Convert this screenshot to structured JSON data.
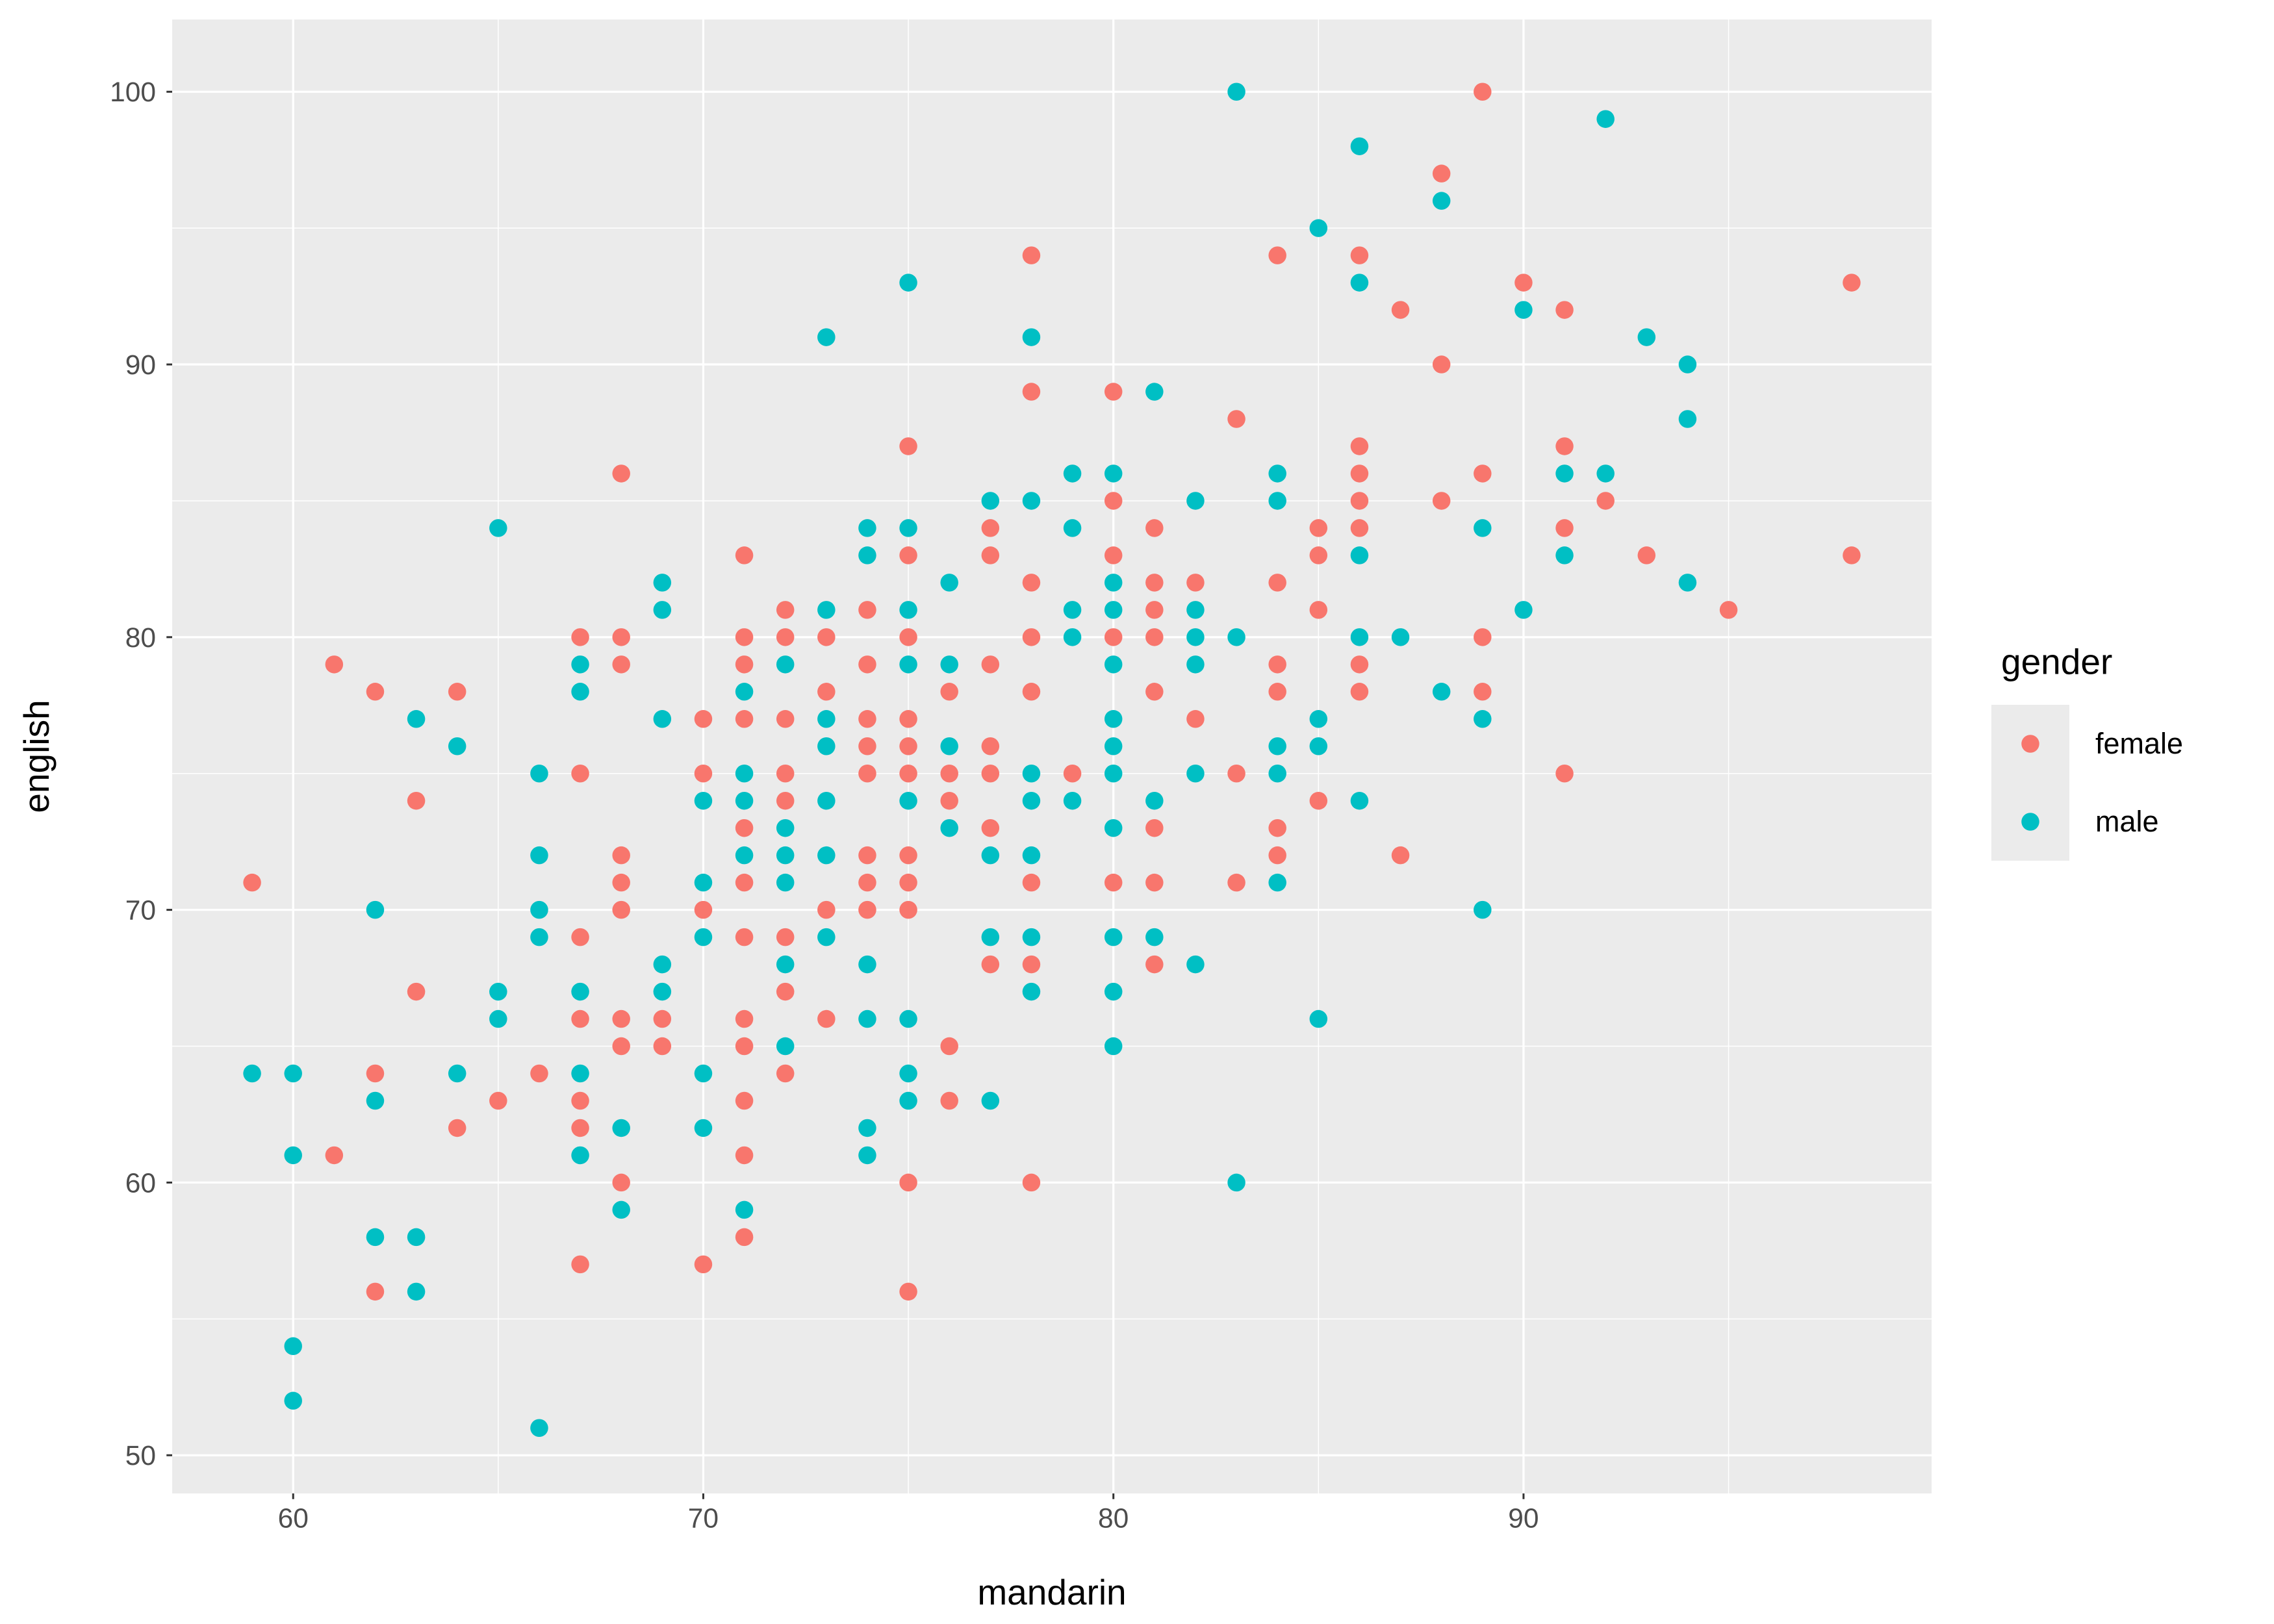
{
  "chart_data": {
    "type": "scatter",
    "title": "",
    "xlabel": "mandarin",
    "ylabel": "english",
    "x_ticks": [
      60,
      70,
      80,
      90
    ],
    "y_ticks": [
      50,
      60,
      70,
      80,
      90,
      100
    ],
    "x_minor_gridlines": [
      65,
      75,
      85,
      95
    ],
    "y_minor_gridlines": [
      55,
      65,
      75,
      85,
      95
    ],
    "xlim": [
      57.05,
      99.95
    ],
    "ylim": [
      48.6,
      102.65
    ],
    "grid": "white major and minor gridlines on gray panel",
    "point_radius_px": 5.5,
    "legend": {
      "title": "gender",
      "position": "right",
      "entries": [
        {
          "label": "female",
          "color": "#F8766D"
        },
        {
          "label": "male",
          "color": "#00BFC4"
        }
      ]
    },
    "series": [
      {
        "name": "female",
        "color": "#F8766D",
        "points": [
          [
            68,
            86
          ],
          [
            78,
            94
          ],
          [
            84,
            94
          ],
          [
            86,
            94
          ],
          [
            78,
            89
          ],
          [
            80,
            89
          ],
          [
            83,
            88
          ],
          [
            75,
            87
          ],
          [
            86,
            87
          ],
          [
            86,
            86
          ],
          [
            80,
            85
          ],
          [
            86,
            85
          ],
          [
            89,
            100
          ],
          [
            88,
            97
          ],
          [
            90,
            93
          ],
          [
            98,
            93
          ],
          [
            87,
            92
          ],
          [
            91,
            92
          ],
          [
            88,
            90
          ],
          [
            91,
            87
          ],
          [
            89,
            86
          ],
          [
            88,
            85
          ],
          [
            92,
            85
          ],
          [
            91,
            84
          ],
          [
            93,
            83
          ],
          [
            98,
            83
          ],
          [
            95,
            81
          ],
          [
            89,
            80
          ],
          [
            89,
            78
          ],
          [
            91,
            75
          ],
          [
            87,
            72
          ],
          [
            71,
            83
          ],
          [
            67,
            80
          ],
          [
            68,
            80
          ],
          [
            71,
            80
          ],
          [
            61,
            79
          ],
          [
            68,
            79
          ],
          [
            71,
            79
          ],
          [
            62,
            78
          ],
          [
            64,
            78
          ],
          [
            70,
            77
          ],
          [
            71,
            77
          ],
          [
            67,
            75
          ],
          [
            70,
            75
          ],
          [
            63,
            74
          ],
          [
            71,
            73
          ],
          [
            68,
            72
          ],
          [
            59,
            71
          ],
          [
            68,
            71
          ],
          [
            71,
            71
          ],
          [
            68,
            70
          ],
          [
            70,
            70
          ],
          [
            67,
            69
          ],
          [
            71,
            69
          ],
          [
            63,
            67
          ],
          [
            77,
            84
          ],
          [
            81,
            84
          ],
          [
            85,
            84
          ],
          [
            86,
            84
          ],
          [
            75,
            83
          ],
          [
            77,
            83
          ],
          [
            80,
            83
          ],
          [
            85,
            83
          ],
          [
            78,
            82
          ],
          [
            81,
            82
          ],
          [
            82,
            82
          ],
          [
            84,
            82
          ],
          [
            72,
            81
          ],
          [
            74,
            81
          ],
          [
            81,
            81
          ],
          [
            85,
            81
          ],
          [
            72,
            80
          ],
          [
            73,
            80
          ],
          [
            75,
            80
          ],
          [
            78,
            80
          ],
          [
            80,
            80
          ],
          [
            81,
            80
          ],
          [
            74,
            79
          ],
          [
            77,
            79
          ],
          [
            84,
            79
          ],
          [
            86,
            79
          ],
          [
            73,
            78
          ],
          [
            76,
            78
          ],
          [
            78,
            78
          ],
          [
            81,
            78
          ],
          [
            84,
            78
          ],
          [
            86,
            78
          ],
          [
            72,
            77
          ],
          [
            74,
            77
          ],
          [
            75,
            77
          ],
          [
            82,
            77
          ],
          [
            74,
            76
          ],
          [
            75,
            76
          ],
          [
            77,
            76
          ],
          [
            72,
            75
          ],
          [
            74,
            75
          ],
          [
            75,
            75
          ],
          [
            76,
            75
          ],
          [
            77,
            75
          ],
          [
            79,
            75
          ],
          [
            83,
            75
          ],
          [
            72,
            74
          ],
          [
            76,
            74
          ],
          [
            85,
            74
          ],
          [
            77,
            73
          ],
          [
            81,
            73
          ],
          [
            84,
            73
          ],
          [
            74,
            72
          ],
          [
            75,
            72
          ],
          [
            84,
            72
          ],
          [
            74,
            71
          ],
          [
            75,
            71
          ],
          [
            78,
            71
          ],
          [
            80,
            71
          ],
          [
            81,
            71
          ],
          [
            83,
            71
          ],
          [
            73,
            70
          ],
          [
            74,
            70
          ],
          [
            75,
            70
          ],
          [
            72,
            69
          ],
          [
            77,
            68
          ],
          [
            78,
            68
          ],
          [
            81,
            68
          ],
          [
            72,
            67
          ],
          [
            67,
            66
          ],
          [
            68,
            66
          ],
          [
            69,
            66
          ],
          [
            71,
            66
          ],
          [
            68,
            65
          ],
          [
            69,
            65
          ],
          [
            71,
            65
          ],
          [
            62,
            64
          ],
          [
            66,
            64
          ],
          [
            65,
            63
          ],
          [
            67,
            63
          ],
          [
            71,
            63
          ],
          [
            64,
            62
          ],
          [
            67,
            62
          ],
          [
            61,
            61
          ],
          [
            71,
            61
          ],
          [
            68,
            60
          ],
          [
            71,
            58
          ],
          [
            67,
            57
          ],
          [
            70,
            57
          ],
          [
            62,
            56
          ],
          [
            73,
            66
          ],
          [
            76,
            65
          ],
          [
            72,
            64
          ],
          [
            76,
            63
          ],
          [
            75,
            60
          ],
          [
            78,
            60
          ],
          [
            75,
            56
          ]
        ]
      },
      {
        "name": "male",
        "color": "#00BFC4",
        "points": [
          [
            83,
            100
          ],
          [
            86,
            98
          ],
          [
            85,
            95
          ],
          [
            75,
            93
          ],
          [
            86,
            93
          ],
          [
            73,
            91
          ],
          [
            78,
            91
          ],
          [
            81,
            89
          ],
          [
            79,
            86
          ],
          [
            80,
            86
          ],
          [
            84,
            86
          ],
          [
            77,
            85
          ],
          [
            78,
            85
          ],
          [
            82,
            85
          ],
          [
            84,
            85
          ],
          [
            92,
            99
          ],
          [
            88,
            96
          ],
          [
            90,
            92
          ],
          [
            93,
            91
          ],
          [
            94,
            90
          ],
          [
            94,
            88
          ],
          [
            91,
            86
          ],
          [
            92,
            86
          ],
          [
            89,
            84
          ],
          [
            91,
            83
          ],
          [
            94,
            82
          ],
          [
            90,
            81
          ],
          [
            87,
            80
          ],
          [
            88,
            78
          ],
          [
            89,
            77
          ],
          [
            89,
            70
          ],
          [
            65,
            84
          ],
          [
            69,
            82
          ],
          [
            69,
            81
          ],
          [
            67,
            79
          ],
          [
            67,
            78
          ],
          [
            71,
            78
          ],
          [
            63,
            77
          ],
          [
            69,
            77
          ],
          [
            64,
            76
          ],
          [
            66,
            75
          ],
          [
            71,
            75
          ],
          [
            70,
            74
          ],
          [
            71,
            74
          ],
          [
            66,
            72
          ],
          [
            71,
            72
          ],
          [
            70,
            71
          ],
          [
            62,
            70
          ],
          [
            66,
            70
          ],
          [
            66,
            69
          ],
          [
            70,
            69
          ],
          [
            69,
            68
          ],
          [
            65,
            67
          ],
          [
            67,
            67
          ],
          [
            69,
            67
          ],
          [
            74,
            84
          ],
          [
            75,
            84
          ],
          [
            79,
            84
          ],
          [
            74,
            83
          ],
          [
            86,
            83
          ],
          [
            76,
            82
          ],
          [
            80,
            82
          ],
          [
            73,
            81
          ],
          [
            75,
            81
          ],
          [
            79,
            81
          ],
          [
            80,
            81
          ],
          [
            82,
            81
          ],
          [
            79,
            80
          ],
          [
            82,
            80
          ],
          [
            83,
            80
          ],
          [
            86,
            80
          ],
          [
            72,
            79
          ],
          [
            75,
            79
          ],
          [
            76,
            79
          ],
          [
            80,
            79
          ],
          [
            82,
            79
          ],
          [
            73,
            77
          ],
          [
            80,
            77
          ],
          [
            85,
            77
          ],
          [
            73,
            76
          ],
          [
            76,
            76
          ],
          [
            80,
            76
          ],
          [
            84,
            76
          ],
          [
            85,
            76
          ],
          [
            78,
            75
          ],
          [
            80,
            75
          ],
          [
            82,
            75
          ],
          [
            84,
            75
          ],
          [
            73,
            74
          ],
          [
            75,
            74
          ],
          [
            78,
            74
          ],
          [
            79,
            74
          ],
          [
            81,
            74
          ],
          [
            86,
            74
          ],
          [
            72,
            73
          ],
          [
            76,
            73
          ],
          [
            80,
            73
          ],
          [
            72,
            72
          ],
          [
            73,
            72
          ],
          [
            77,
            72
          ],
          [
            78,
            72
          ],
          [
            72,
            71
          ],
          [
            84,
            71
          ],
          [
            73,
            69
          ],
          [
            77,
            69
          ],
          [
            78,
            69
          ],
          [
            80,
            69
          ],
          [
            81,
            69
          ],
          [
            72,
            68
          ],
          [
            74,
            68
          ],
          [
            82,
            68
          ],
          [
            78,
            67
          ],
          [
            80,
            67
          ],
          [
            65,
            66
          ],
          [
            59,
            64
          ],
          [
            60,
            64
          ],
          [
            64,
            64
          ],
          [
            67,
            64
          ],
          [
            70,
            64
          ],
          [
            62,
            63
          ],
          [
            68,
            62
          ],
          [
            70,
            62
          ],
          [
            60,
            61
          ],
          [
            67,
            61
          ],
          [
            68,
            59
          ],
          [
            71,
            59
          ],
          [
            62,
            58
          ],
          [
            63,
            58
          ],
          [
            63,
            56
          ],
          [
            60,
            54
          ],
          [
            60,
            52
          ],
          [
            66,
            51
          ],
          [
            74,
            66
          ],
          [
            75,
            66
          ],
          [
            85,
            66
          ],
          [
            72,
            65
          ],
          [
            80,
            65
          ],
          [
            75,
            64
          ],
          [
            75,
            63
          ],
          [
            77,
            63
          ],
          [
            74,
            62
          ],
          [
            74,
            61
          ],
          [
            83,
            60
          ]
        ]
      }
    ]
  },
  "colors": {
    "background": "#FFFFFF",
    "panel": "#EBEBEB",
    "gridline": "#FFFFFF",
    "tick_mark": "#333333",
    "tick_label": "#4D4D4D",
    "axis_title": "#000000",
    "legend_key_background": "#EBEBEB"
  }
}
